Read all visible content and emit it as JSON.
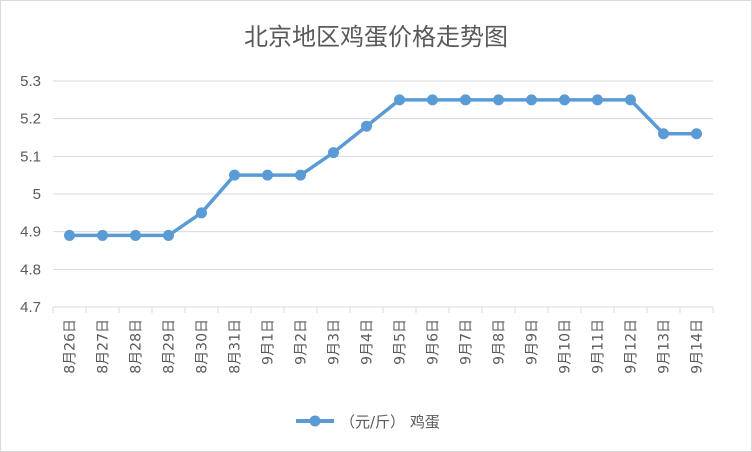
{
  "chart_data": {
    "type": "line",
    "title": "北京地区鸡蛋价格走势图",
    "categories": [
      "8月26日",
      "8月27日",
      "8月28日",
      "8月29日",
      "8月30日",
      "8月31日",
      "9月1日",
      "9月2日",
      "9月3日",
      "9月4日",
      "9月5日",
      "9月6日",
      "9月7日",
      "9月8日",
      "9月9日",
      "9月10日",
      "9月11日",
      "9月12日",
      "9月13日",
      "9月14日"
    ],
    "series": [
      {
        "name": "（元/斤） 鸡蛋",
        "values": [
          4.89,
          4.89,
          4.89,
          4.89,
          4.95,
          5.05,
          5.05,
          5.05,
          5.11,
          5.18,
          5.25,
          5.25,
          5.25,
          5.25,
          5.25,
          5.25,
          5.25,
          5.25,
          5.16,
          5.16
        ],
        "color": "#5b9bd5"
      }
    ],
    "yticks": [
      "4.7",
      "4.8",
      "4.9",
      "5",
      "5.1",
      "5.2",
      "5.3"
    ],
    "ylim": [
      4.7,
      5.3
    ],
    "grid": true,
    "legend_position": "bottom",
    "colors": {
      "line": "#5b9bd5",
      "grid": "#d9d9d9",
      "text": "#595959"
    }
  }
}
